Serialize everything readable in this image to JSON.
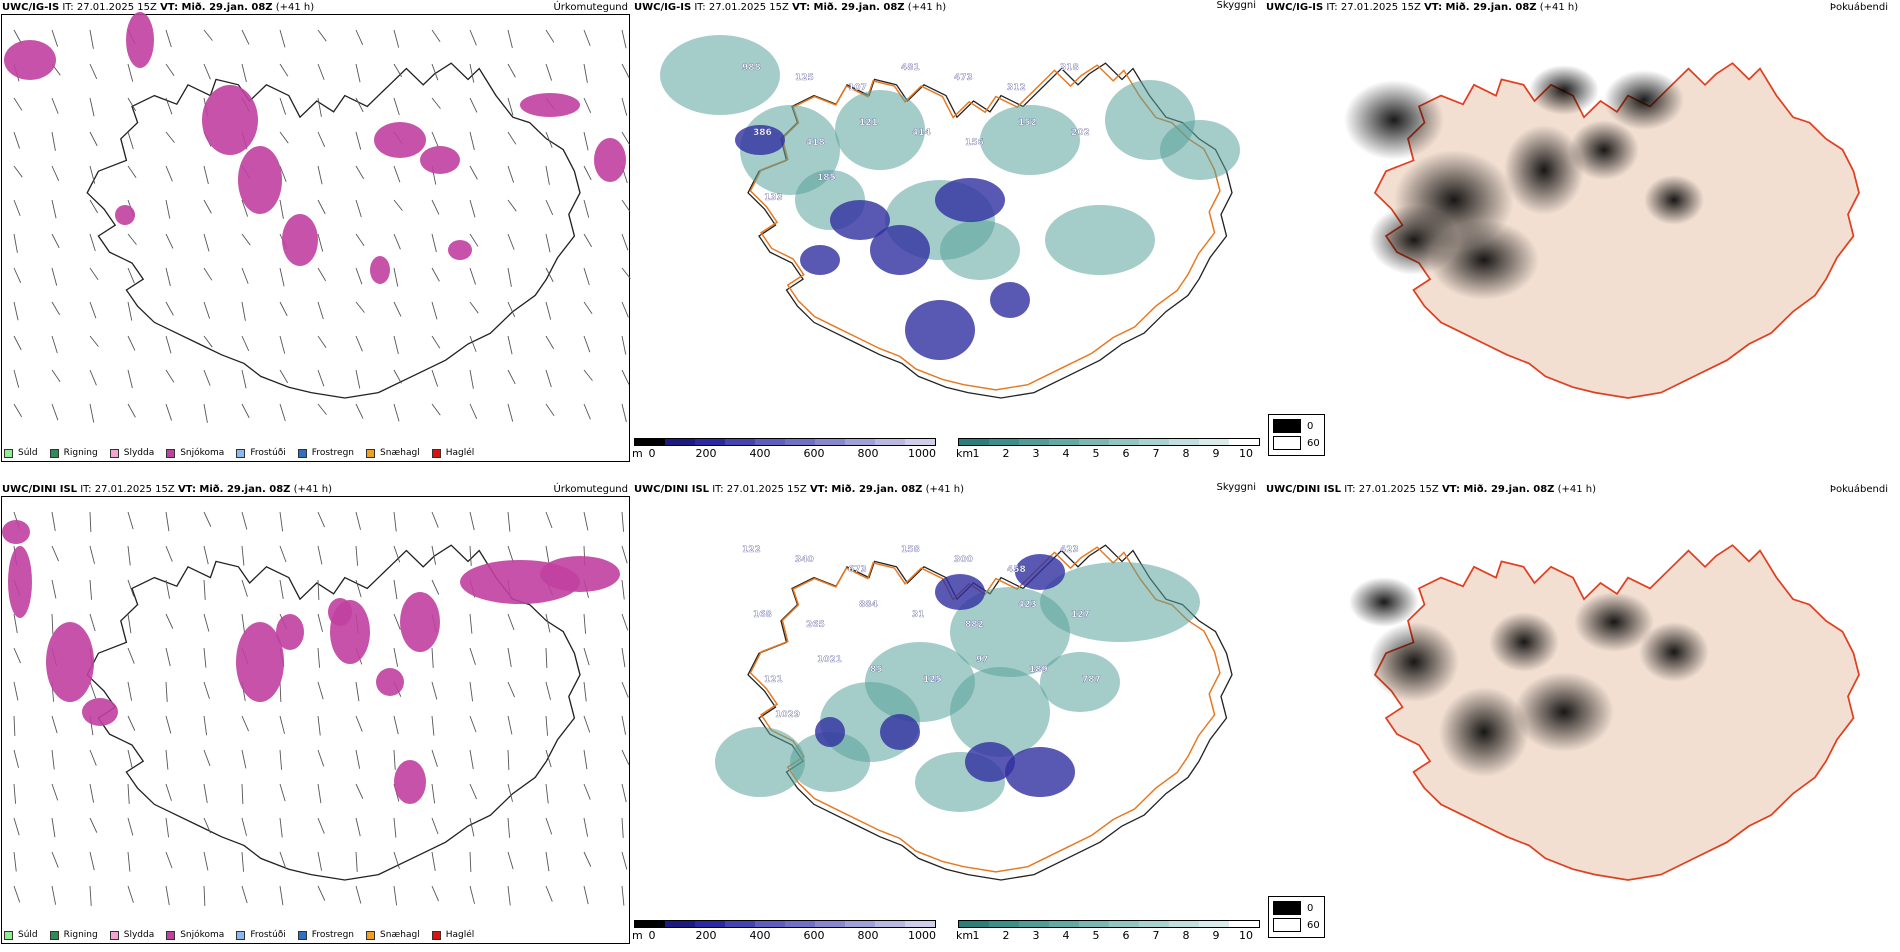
{
  "rows": [
    {
      "model": "UWC/IG-IS",
      "it": "IT: 27.01.2025 15Z",
      "vt": "VT: Mið. 29.jan. 08Z",
      "lead": "(+41 h)",
      "cloud_labels": [
        "988",
        "125",
        "107",
        "481",
        "473",
        "312",
        "318",
        "386",
        "418",
        "121",
        "414",
        "156",
        "152",
        "202",
        "133",
        "185"
      ],
      "precip_blobs": [
        [
          140,
          40,
          14,
          28
        ],
        [
          30,
          60,
          26,
          20
        ],
        [
          230,
          120,
          28,
          35
        ],
        [
          260,
          180,
          22,
          34
        ],
        [
          300,
          240,
          18,
          26
        ],
        [
          400,
          140,
          26,
          18
        ],
        [
          440,
          160,
          20,
          14
        ],
        [
          550,
          105,
          30,
          12
        ],
        [
          610,
          160,
          16,
          22
        ],
        [
          380,
          270,
          10,
          14
        ],
        [
          460,
          250,
          12,
          10
        ],
        [
          125,
          215,
          10,
          10
        ]
      ],
      "cloud_blobs": [
        [
          720,
          75,
          60,
          40
        ],
        [
          790,
          150,
          50,
          45
        ],
        [
          880,
          130,
          45,
          40
        ],
        [
          940,
          220,
          55,
          40
        ],
        [
          1030,
          140,
          50,
          35
        ],
        [
          1100,
          240,
          55,
          35
        ],
        [
          1150,
          120,
          45,
          40
        ],
        [
          1200,
          150,
          40,
          30
        ],
        [
          980,
          250,
          40,
          30
        ],
        [
          830,
          200,
          35,
          30
        ]
      ],
      "cloud_blue": [
        [
          760,
          140,
          25,
          15
        ],
        [
          860,
          220,
          30,
          20
        ],
        [
          900,
          250,
          30,
          25
        ],
        [
          970,
          200,
          35,
          22
        ],
        [
          940,
          330,
          35,
          30
        ],
        [
          1010,
          300,
          20,
          18
        ],
        [
          820,
          260,
          20,
          15
        ]
      ]
    },
    {
      "model": "UWC/DINI ISL",
      "it": "IT: 27.01.2025 15Z",
      "vt": "VT: Mið. 29.jan. 08Z",
      "lead": "(+41 h)",
      "cloud_labels": [
        "122",
        "340",
        "673",
        "158",
        "300",
        "458",
        "423",
        "168",
        "265",
        "884",
        "31",
        "882",
        "423",
        "127",
        "121",
        "1021",
        "85",
        "125",
        "97",
        "189",
        "787",
        "1029"
      ],
      "precip_blobs": [
        [
          520,
          100,
          60,
          22
        ],
        [
          580,
          92,
          40,
          18
        ],
        [
          20,
          100,
          12,
          36
        ],
        [
          70,
          180,
          24,
          40
        ],
        [
          100,
          230,
          18,
          14
        ],
        [
          260,
          180,
          24,
          40
        ],
        [
          290,
          150,
          14,
          18
        ],
        [
          350,
          150,
          20,
          32
        ],
        [
          420,
          140,
          20,
          30
        ],
        [
          390,
          200,
          14,
          14
        ],
        [
          410,
          300,
          16,
          22
        ],
        [
          340,
          130,
          12,
          14
        ],
        [
          16,
          50,
          14,
          12
        ]
      ],
      "cloud_blobs": [
        [
          1120,
          120,
          80,
          40
        ],
        [
          1010,
          150,
          60,
          45
        ],
        [
          920,
          200,
          55,
          40
        ],
        [
          870,
          240,
          50,
          40
        ],
        [
          1000,
          230,
          50,
          45
        ],
        [
          1080,
          200,
          40,
          30
        ],
        [
          760,
          280,
          45,
          35
        ],
        [
          830,
          280,
          40,
          30
        ],
        [
          960,
          300,
          45,
          30
        ]
      ],
      "cloud_blue": [
        [
          960,
          110,
          25,
          18
        ],
        [
          1040,
          90,
          25,
          18
        ],
        [
          1040,
          290,
          35,
          25
        ],
        [
          990,
          280,
          25,
          20
        ],
        [
          900,
          250,
          20,
          18
        ],
        [
          830,
          250,
          15,
          15
        ]
      ]
    }
  ],
  "panel_titles": {
    "precip": "Úrkomutegund",
    "cloud": "Skyggni",
    "fog": "Þokuábendi"
  },
  "precip_legend": [
    {
      "label": "Súld",
      "color": "#90ee90"
    },
    {
      "label": "Rigning",
      "color": "#2e8b57"
    },
    {
      "label": "Slydda",
      "color": "#f4a6d0"
    },
    {
      "label": "Snjókoma",
      "color": "#c040a0"
    },
    {
      "label": "Frostúði",
      "color": "#8ab8f0"
    },
    {
      "label": "Frostregn",
      "color": "#3070c0"
    },
    {
      "label": "Snæhagl",
      "color": "#f0a020"
    },
    {
      "label": "Haglél",
      "color": "#e01010"
    }
  ],
  "height_scale": {
    "unit": "m",
    "ticks": [
      "0",
      "200",
      "400",
      "600",
      "800",
      "1000"
    ],
    "colors": [
      "#000000",
      "#1a1a80",
      "#2a2aa0",
      "#4444b0",
      "#5e5ec0",
      "#7070c8",
      "#8888d0",
      "#a0a0d8",
      "#b8b8e0",
      "#cfcfec"
    ]
  },
  "vis_scale": {
    "unit": "km",
    "ticks": [
      "1",
      "2",
      "3",
      "4",
      "5",
      "6",
      "7",
      "8",
      "9",
      "10"
    ],
    "colors": [
      "#2a8078",
      "#3a8f88",
      "#4f9d96",
      "#64aaa4",
      "#7bb8b3",
      "#92c6c1",
      "#a9d3cf",
      "#c0e0dd",
      "#d8edeb",
      "#ffffff"
    ]
  },
  "fog_key": [
    {
      "label": "0",
      "color": "#000000"
    },
    {
      "label": "60",
      "color": "#ffffff"
    }
  ],
  "colors": {
    "snow": "#c040a0",
    "cloud_teal": "#5aa39b",
    "cloud_blue": "#3030a0",
    "roads_orange": "#e87820",
    "land_fog": "#f2dfd2",
    "road_red": "#e04020"
  }
}
